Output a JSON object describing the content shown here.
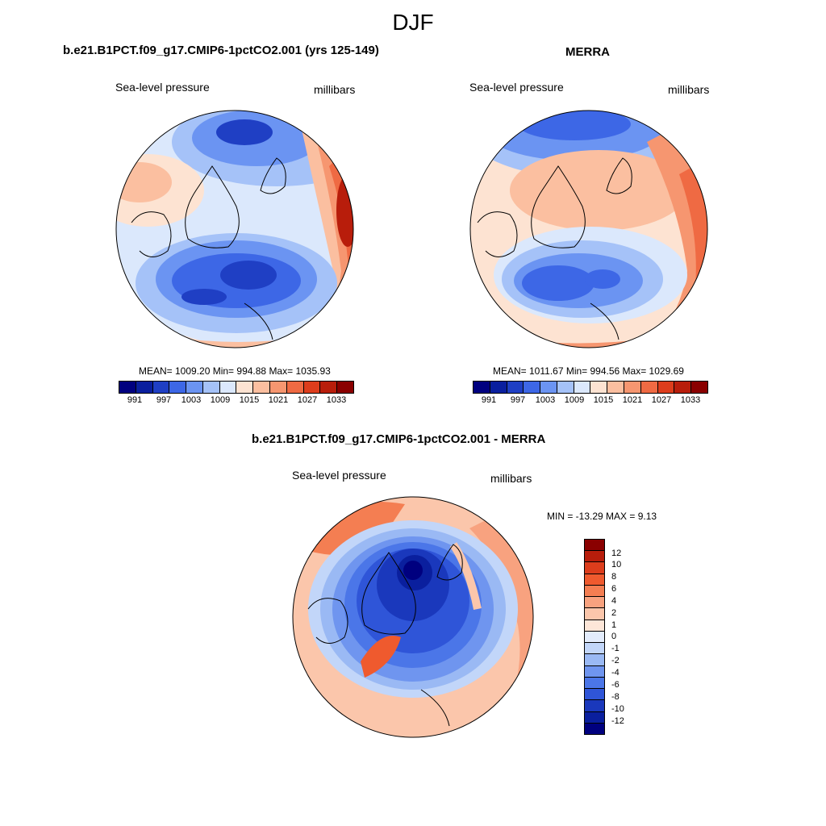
{
  "figure": {
    "title": "DJF"
  },
  "panels": {
    "model": {
      "title": "b.e21.B1PCT.f09_g17.CMIP6-1pctCO2.001 (yrs 125-149)",
      "left_label": "Sea-level pressure",
      "right_label": "millibars",
      "stats": "MEAN= 1009.20  Min= 994.88  Max= 1035.93"
    },
    "obs": {
      "title": "MERRA",
      "left_label": "Sea-level pressure",
      "right_label": "millibars",
      "stats": "MEAN= 1011.67  Min= 994.56  Max= 1029.69"
    },
    "diff": {
      "title": "b.e21.B1PCT.f09_g17.CMIP6-1pctCO2.001 - MERRA",
      "left_label": "Sea-level pressure",
      "right_label": "millibars",
      "stats": "MIN = -13.29 MAX =   9.13"
    }
  },
  "colorbars": {
    "slp": {
      "colors": [
        "#00007f",
        "#0a1f9e",
        "#1f3fc4",
        "#3d67e6",
        "#6b94f2",
        "#a5c2f8",
        "#dbe8fc",
        "#fde3d2",
        "#fbbfa0",
        "#f69670",
        "#ef6a43",
        "#dd3d1c",
        "#b81d0b",
        "#8a0000"
      ],
      "tick_labels": [
        "991",
        "997",
        "1003",
        "1009",
        "1015",
        "1021",
        "1027",
        "1033"
      ]
    },
    "diff": {
      "colors": [
        "#8a0000",
        "#b81d0b",
        "#dd3d1c",
        "#ef5a2e",
        "#f47e52",
        "#f8a27f",
        "#fbc6ab",
        "#fde6d8",
        "#e3ecfc",
        "#c2d6f9",
        "#9ab9f4",
        "#6f95ef",
        "#4b76e8",
        "#2f55d8",
        "#1a38bc",
        "#0a1f9e",
        "#00007f"
      ],
      "tick_labels": [
        "12",
        "10",
        "8",
        "6",
        "4",
        "2",
        "1",
        "0",
        "-1",
        "-2",
        "-4",
        "-6",
        "-8",
        "-10",
        "-12"
      ]
    }
  }
}
